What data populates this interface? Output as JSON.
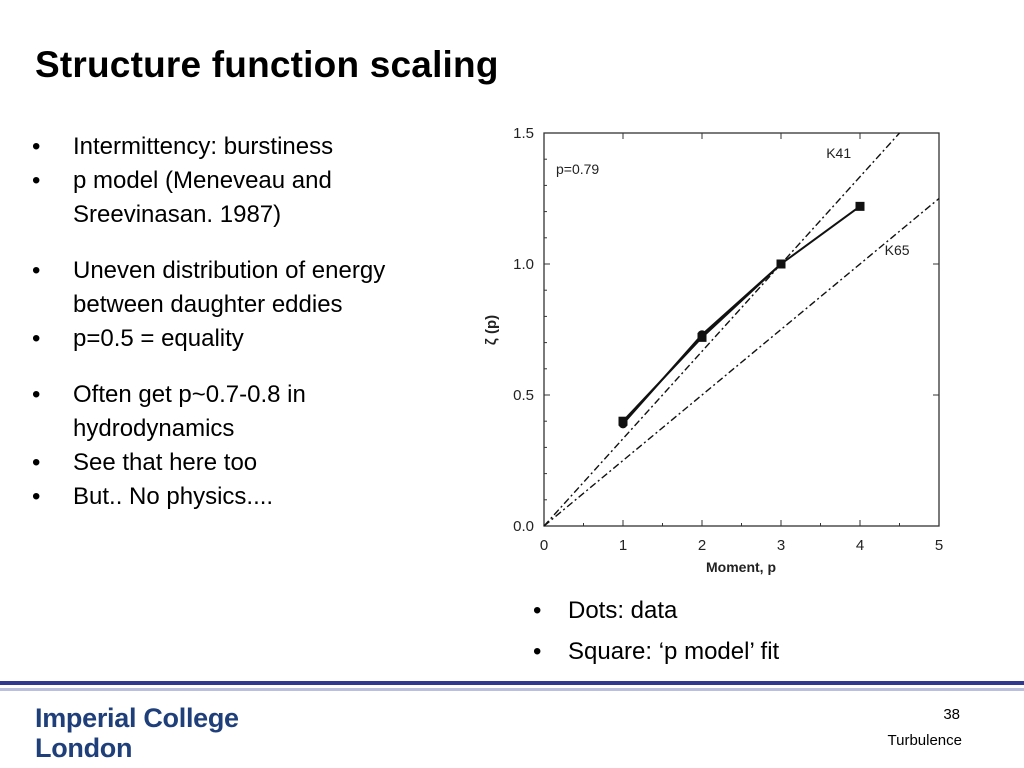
{
  "slide": {
    "title": "Structure function scaling",
    "bullets": [
      "Intermittency: burstiness",
      "p model (Meneveau and Sreevinasan. 1987)",
      "Uneven distribution of energy between daughter eddies",
      "p=0.5 = equality",
      "Often get p~0.7-0.8 in hydrodynamics",
      "See that here too",
      "But.. No physics...."
    ],
    "legend_bullets": [
      "Dots: data",
      "Square: ‘p model’ fit"
    ],
    "footer": {
      "logo_line1": "Imperial College",
      "logo_line2": "London",
      "page_number": "38",
      "section": "Turbulence"
    },
    "colors": {
      "footer_dark": "#2f3a8f",
      "footer_light": "#b9bfdc",
      "logo": "#1f3f7a"
    }
  },
  "chart_data": {
    "type": "line",
    "title": "",
    "xlabel": "Moment, p",
    "ylabel": "ζ (p)",
    "xlim": [
      0,
      5
    ],
    "ylim": [
      0,
      1.5
    ],
    "xticks": [
      "0",
      "1",
      "2",
      "3",
      "4",
      "5"
    ],
    "yticks": [
      "0.0",
      "0.5",
      "1.0",
      "1.5"
    ],
    "annotation": "p=0.79",
    "reference_lines": [
      {
        "label": "K41",
        "slope": 0.3333
      },
      {
        "label": "K65",
        "slope": 0.25
      }
    ],
    "series": [
      {
        "marker": "dot",
        "x": [
          1,
          2,
          3
        ],
        "y": [
          0.39,
          0.73,
          1.0
        ]
      },
      {
        "marker": "square",
        "x": [
          1,
          2,
          3,
          4
        ],
        "y": [
          0.4,
          0.72,
          1.0,
          1.22
        ]
      }
    ],
    "grid": false
  }
}
